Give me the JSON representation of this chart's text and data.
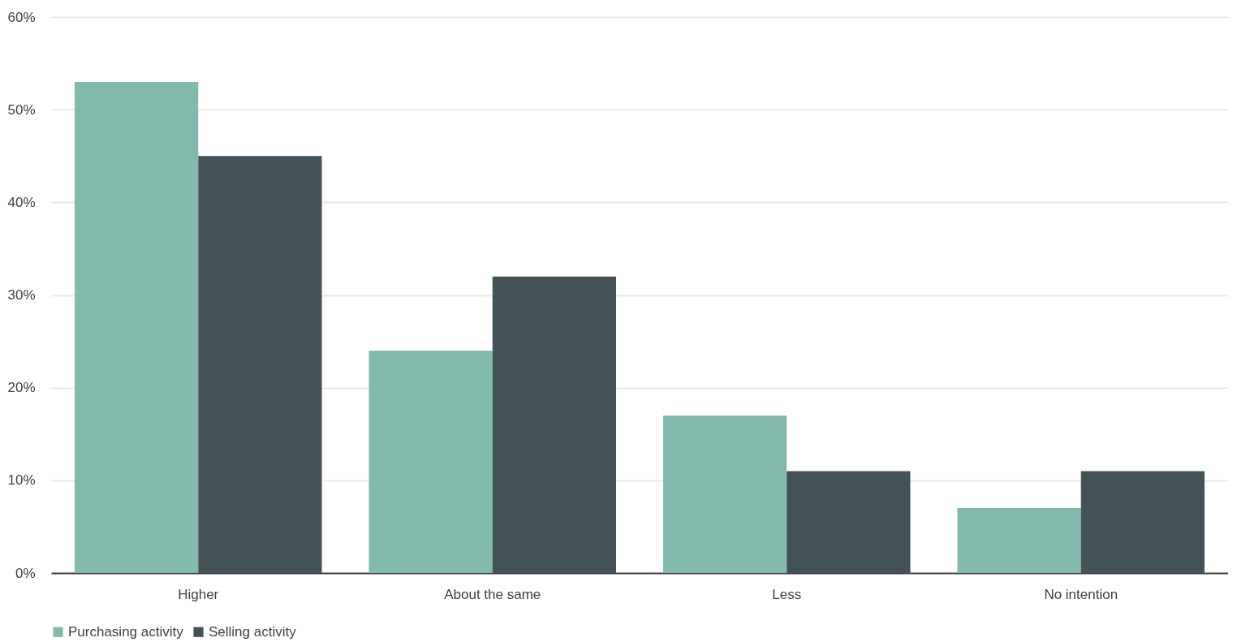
{
  "chart_data": {
    "type": "bar",
    "categories": [
      "Higher",
      "About the same",
      "Less",
      "No intention"
    ],
    "series": [
      {
        "name": "Purchasing activity",
        "color": "#82bbad",
        "values": [
          53,
          24,
          17,
          7
        ]
      },
      {
        "name": "Selling activity",
        "color": "#435256",
        "values": [
          45,
          32,
          11,
          11
        ]
      }
    ],
    "ylim": [
      0,
      60
    ],
    "yticks": [
      {
        "value": 0,
        "label": "0%"
      },
      {
        "value": 10,
        "label": "10%"
      },
      {
        "value": 20,
        "label": "20%"
      },
      {
        "value": 30,
        "label": "30%"
      },
      {
        "value": 40,
        "label": "40%"
      },
      {
        "value": 50,
        "label": "50%"
      },
      {
        "value": 60,
        "label": "60%"
      }
    ],
    "grid": "y",
    "legend": "bottom"
  }
}
